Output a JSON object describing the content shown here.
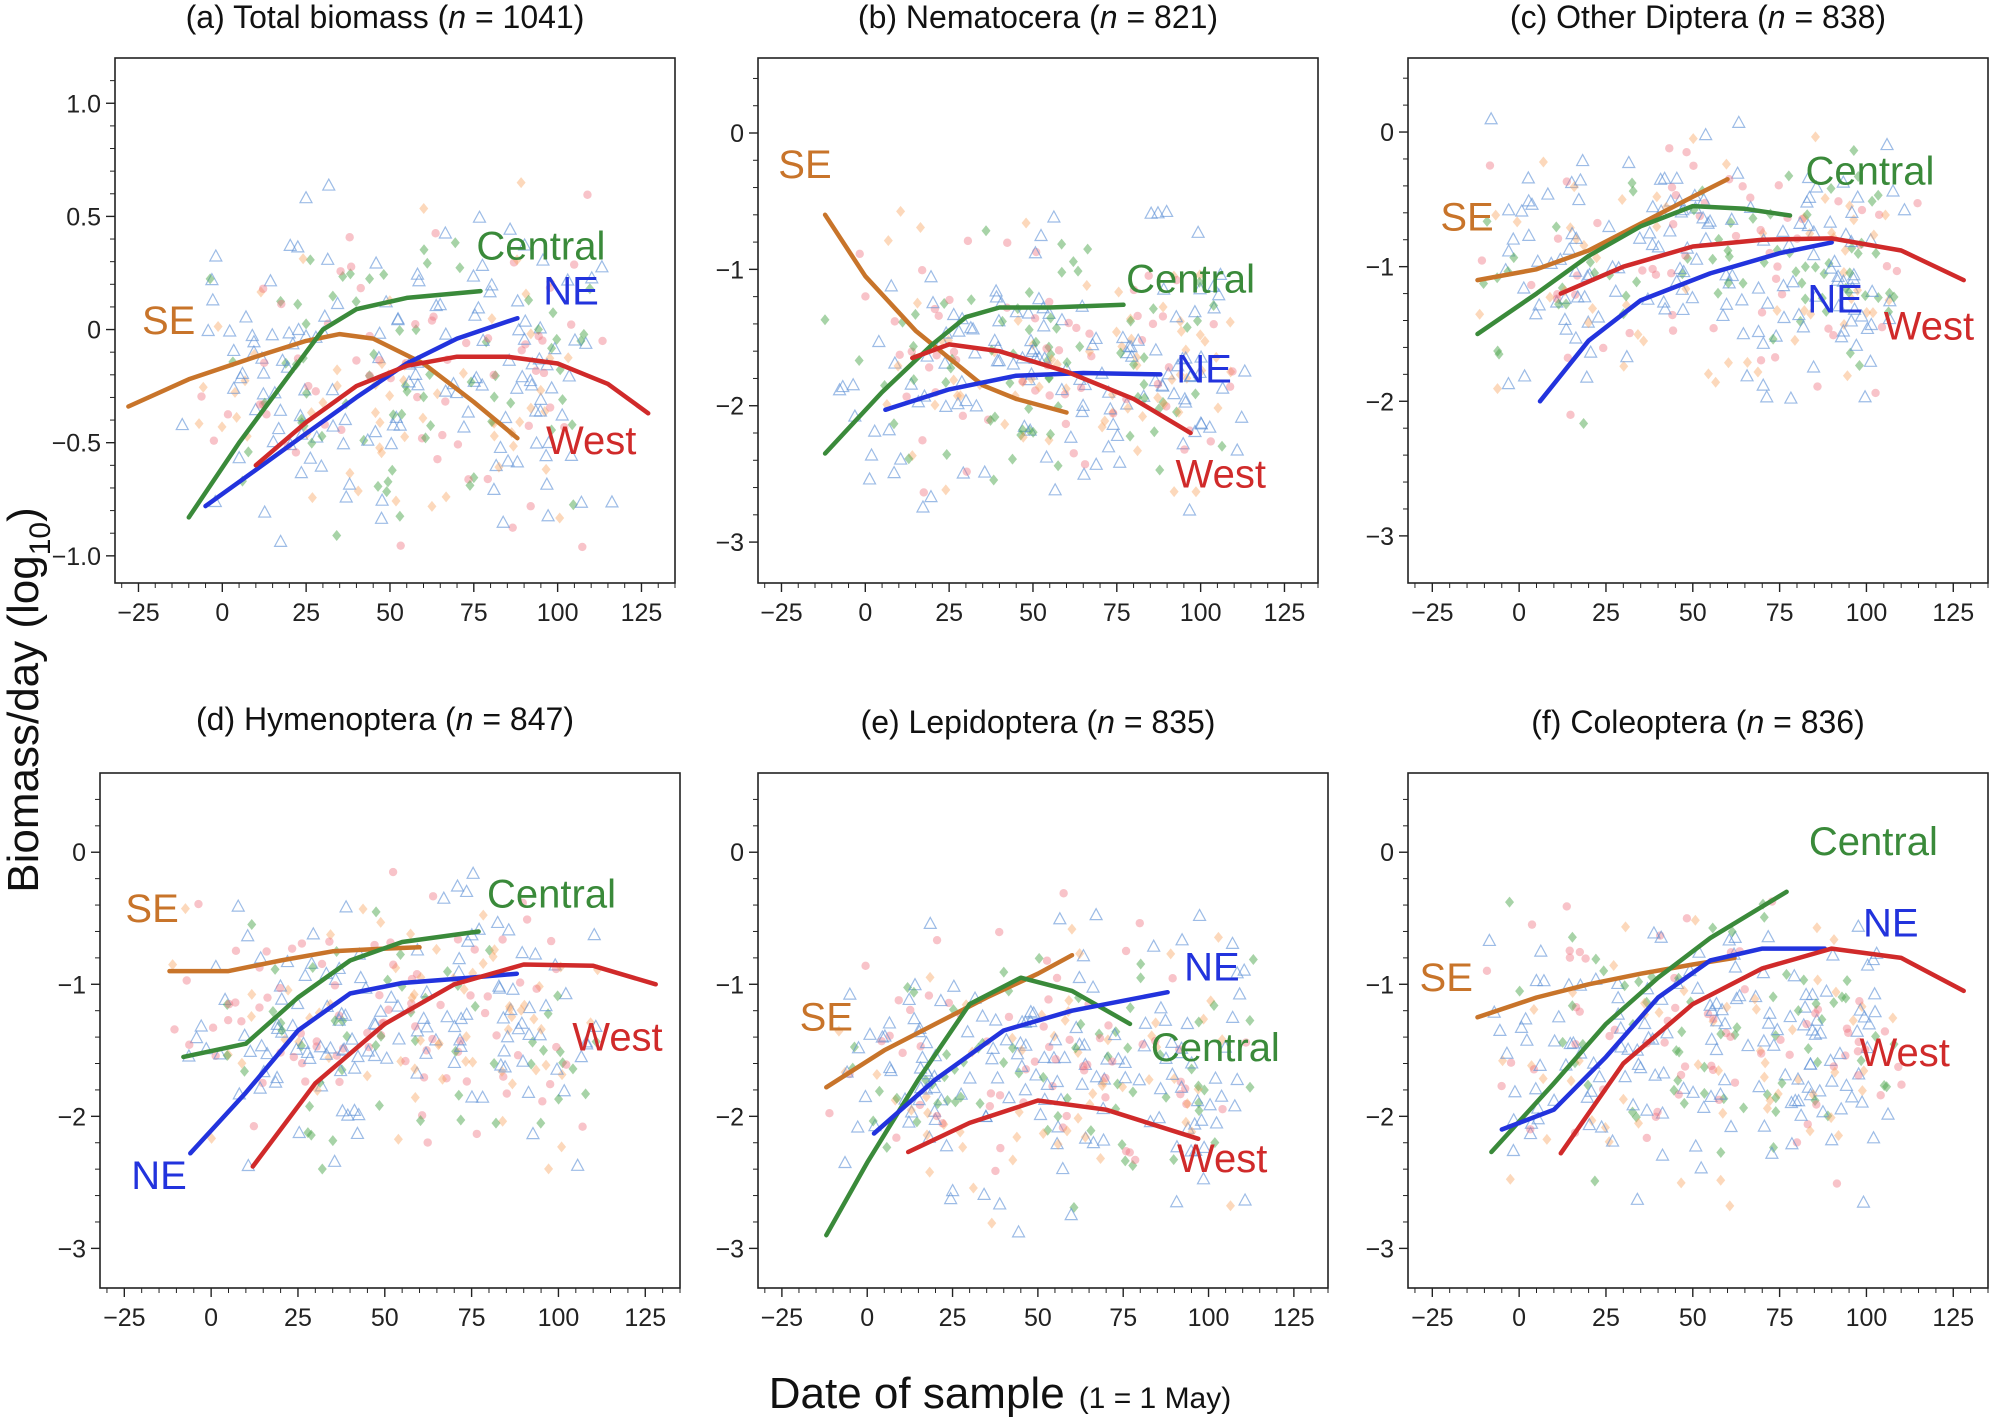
{
  "figure": {
    "y_axis_label": {
      "main": "Biomass/day (log",
      "sub": "10",
      "close": ")"
    },
    "x_axis_label": {
      "main": "Date of sample",
      "note": "(1 = 1 May)"
    }
  },
  "colors": {
    "SE": "#c8742a",
    "Central": "#3a8a3a",
    "NE": "#2233dd",
    "West": "#d02a2a"
  },
  "point_colors": {
    "SE": "#f7a35c",
    "Central": "#4fa84f",
    "NE": "#5b8fd6",
    "West": "#ef6f7f"
  },
  "chart_data": [
    {
      "type": "scatter",
      "panel_label": "(a) Total biomass (",
      "n_text": "n",
      "count_text": " = 1041)",
      "xlim": [
        -32,
        135
      ],
      "ylim": [
        -1.12,
        1.2
      ],
      "xticks": [
        -25,
        0,
        25,
        50,
        75,
        100,
        125
      ],
      "yticks": [
        1.0,
        0.5,
        0,
        -0.5,
        -1.0
      ],
      "ytick_labels": [
        "1.0",
        "0.5",
        "0",
        "−0.5",
        "−1.0"
      ],
      "scatter": {
        "ymin": -1.0,
        "ymax": 0.85,
        "center": -0.2,
        "spread": 0.45
      },
      "series": [
        {
          "name": "SE",
          "x": [
            -28,
            -10,
            10,
            25,
            35,
            45,
            60,
            75,
            88
          ],
          "y": [
            -0.34,
            -0.22,
            -0.12,
            -0.05,
            -0.02,
            -0.04,
            -0.15,
            -0.32,
            -0.48
          ]
        },
        {
          "name": "Central",
          "x": [
            -10,
            5,
            20,
            30,
            40,
            55,
            77
          ],
          "y": [
            -0.83,
            -0.5,
            -0.2,
            0.0,
            0.09,
            0.14,
            0.17
          ]
        },
        {
          "name": "NE",
          "x": [
            -5,
            10,
            25,
            40,
            55,
            70,
            88
          ],
          "y": [
            -0.78,
            -0.62,
            -0.46,
            -0.3,
            -0.15,
            -0.04,
            0.05
          ]
        },
        {
          "name": "West",
          "x": [
            10,
            25,
            40,
            55,
            70,
            85,
            100,
            115,
            127
          ],
          "y": [
            -0.6,
            -0.41,
            -0.25,
            -0.16,
            -0.12,
            -0.12,
            -0.15,
            -0.24,
            -0.37
          ]
        }
      ],
      "labels": [
        {
          "text": "SE",
          "x": -16,
          "y": -0.02
        },
        {
          "text": "Central",
          "x": 95,
          "y": 0.31
        },
        {
          "text": "NE",
          "x": 104,
          "y": 0.11
        },
        {
          "text": "West",
          "x": 110,
          "y": -0.55
        }
      ]
    },
    {
      "type": "scatter",
      "panel_label": "(b) Nematocera (",
      "n_text": "n",
      "count_text": " = 821)",
      "xlim": [
        -32,
        135
      ],
      "ylim": [
        -3.3,
        0.55
      ],
      "xticks": [
        -25,
        0,
        25,
        50,
        75,
        100,
        125
      ],
      "yticks": [
        0,
        -1,
        -2,
        -3
      ],
      "ytick_labels": [
        "0",
        "−1",
        "−2",
        "−3"
      ],
      "scatter": {
        "ymin": -3.0,
        "ymax": 0.38,
        "center": -1.7,
        "spread": 0.6
      },
      "series": [
        {
          "name": "SE",
          "x": [
            -12,
            0,
            15,
            25,
            35,
            45,
            60
          ],
          "y": [
            -0.6,
            -1.05,
            -1.45,
            -1.65,
            -1.85,
            -1.95,
            -2.05
          ]
        },
        {
          "name": "Central",
          "x": [
            -12,
            5,
            20,
            30,
            40,
            55,
            77
          ],
          "y": [
            -2.35,
            -1.9,
            -1.55,
            -1.35,
            -1.28,
            -1.28,
            -1.26
          ]
        },
        {
          "name": "NE",
          "x": [
            6,
            25,
            45,
            65,
            88
          ],
          "y": [
            -2.03,
            -1.88,
            -1.78,
            -1.76,
            -1.77
          ]
        },
        {
          "name": "West",
          "x": [
            14,
            25,
            40,
            60,
            80,
            97
          ],
          "y": [
            -1.65,
            -1.55,
            -1.6,
            -1.75,
            -1.95,
            -2.2
          ]
        }
      ],
      "labels": [
        {
          "text": "SE",
          "x": -18,
          "y": -0.33
        },
        {
          "text": "Central",
          "x": 97,
          "y": -1.17
        },
        {
          "text": "NE",
          "x": 101,
          "y": -1.83
        },
        {
          "text": "West",
          "x": 106,
          "y": -2.6
        }
      ]
    },
    {
      "type": "scatter",
      "panel_label": "(c) Other Diptera (",
      "n_text": "n",
      "count_text": " = 838)",
      "xlim": [
        -32,
        135
      ],
      "ylim": [
        -3.35,
        0.55
      ],
      "xticks": [
        -25,
        0,
        25,
        50,
        75,
        100,
        125
      ],
      "yticks": [
        0,
        -1,
        -2,
        -3
      ],
      "ytick_labels": [
        "0",
        "−1",
        "−2",
        "−3"
      ],
      "scatter": {
        "ymin": -3.0,
        "ymax": 0.45,
        "center": -1.0,
        "spread": 0.6
      },
      "series": [
        {
          "name": "SE",
          "x": [
            -12,
            5,
            20,
            35,
            50,
            60
          ],
          "y": [
            -1.1,
            -1.02,
            -0.88,
            -0.68,
            -0.48,
            -0.35
          ]
        },
        {
          "name": "Central",
          "x": [
            -12,
            5,
            20,
            35,
            50,
            65,
            78
          ],
          "y": [
            -1.5,
            -1.2,
            -0.92,
            -0.7,
            -0.55,
            -0.57,
            -0.62
          ]
        },
        {
          "name": "NE",
          "x": [
            6,
            20,
            35,
            55,
            75,
            90
          ],
          "y": [
            -2.0,
            -1.55,
            -1.25,
            -1.05,
            -0.9,
            -0.82
          ]
        },
        {
          "name": "West",
          "x": [
            12,
            30,
            50,
            70,
            90,
            110,
            128
          ],
          "y": [
            -1.2,
            -1.0,
            -0.85,
            -0.8,
            -0.79,
            -0.88,
            -1.1
          ]
        }
      ],
      "labels": [
        {
          "text": "SE",
          "x": -15,
          "y": -0.73
        },
        {
          "text": "Central",
          "x": 101,
          "y": -0.39
        },
        {
          "text": "NE",
          "x": 91,
          "y": -1.34
        },
        {
          "text": "West",
          "x": 118,
          "y": -1.54
        }
      ]
    },
    {
      "type": "scatter",
      "panel_label": "(d) Hymenoptera (",
      "n_text": "n",
      "count_text": " = 847)",
      "xlim": [
        -32,
        135
      ],
      "ylim": [
        -3.3,
        0.6
      ],
      "xticks": [
        -25,
        0,
        25,
        50,
        75,
        100,
        125
      ],
      "yticks": [
        0,
        -1,
        -2,
        -3
      ],
      "ytick_labels": [
        "0",
        "−1",
        "−2",
        "−3"
      ],
      "scatter": {
        "ymin": -3.0,
        "ymax": 0.22,
        "center": -1.3,
        "spread": 0.6
      },
      "series": [
        {
          "name": "SE",
          "x": [
            -12,
            5,
            20,
            35,
            50,
            60
          ],
          "y": [
            -0.9,
            -0.9,
            -0.82,
            -0.75,
            -0.73,
            -0.72
          ]
        },
        {
          "name": "Central",
          "x": [
            -8,
            10,
            25,
            40,
            55,
            77
          ],
          "y": [
            -1.55,
            -1.45,
            -1.1,
            -0.82,
            -0.68,
            -0.6
          ]
        },
        {
          "name": "NE",
          "x": [
            -6,
            10,
            25,
            40,
            55,
            70,
            88
          ],
          "y": [
            -2.28,
            -1.82,
            -1.35,
            -1.07,
            -0.99,
            -0.96,
            -0.92
          ]
        },
        {
          "name": "West",
          "x": [
            12,
            30,
            50,
            70,
            90,
            110,
            128
          ],
          "y": [
            -2.38,
            -1.75,
            -1.3,
            -1.0,
            -0.85,
            -0.86,
            -1.0
          ]
        }
      ],
      "labels": [
        {
          "text": "SE",
          "x": -17,
          "y": -0.53
        },
        {
          "text": "Central",
          "x": 98,
          "y": -0.42
        },
        {
          "text": "NE",
          "x": -15,
          "y": -2.55
        },
        {
          "text": "West",
          "x": 117,
          "y": -1.5
        }
      ]
    },
    {
      "type": "scatter",
      "panel_label": "(e) Lepidoptera (",
      "n_text": "n",
      "count_text": " = 835)",
      "xlim": [
        -32,
        135
      ],
      "ylim": [
        -3.3,
        0.6
      ],
      "xticks": [
        -25,
        0,
        25,
        50,
        75,
        100,
        125
      ],
      "yticks": [
        0,
        -1,
        -2,
        -3
      ],
      "ytick_labels": [
        "0",
        "−1",
        "−2",
        "−3"
      ],
      "scatter": {
        "ymin": -3.0,
        "ymax": 0.55,
        "center": -1.6,
        "spread": 0.65
      },
      "series": [
        {
          "name": "SE",
          "x": [
            -12,
            5,
            20,
            35,
            50,
            60
          ],
          "y": [
            -1.78,
            -1.5,
            -1.3,
            -1.1,
            -0.92,
            -0.78
          ]
        },
        {
          "name": "Central",
          "x": [
            -12,
            0,
            15,
            30,
            45,
            60,
            77
          ],
          "y": [
            -2.9,
            -2.35,
            -1.72,
            -1.15,
            -0.95,
            -1.05,
            -1.3
          ]
        },
        {
          "name": "NE",
          "x": [
            2,
            20,
            40,
            60,
            88
          ],
          "y": [
            -2.13,
            -1.72,
            -1.35,
            -1.2,
            -1.06
          ]
        },
        {
          "name": "West",
          "x": [
            12,
            30,
            50,
            70,
            97
          ],
          "y": [
            -2.27,
            -2.05,
            -1.88,
            -1.95,
            -2.17
          ]
        }
      ],
      "labels": [
        {
          "text": "SE",
          "x": -12,
          "y": -1.35
        },
        {
          "text": "NE",
          "x": 101,
          "y": -0.97
        },
        {
          "text": "Central",
          "x": 102,
          "y": -1.58
        },
        {
          "text": "West",
          "x": 104,
          "y": -2.42
        }
      ]
    },
    {
      "type": "scatter",
      "panel_label": "(f) Coleoptera (",
      "n_text": "n",
      "count_text": " = 836)",
      "xlim": [
        -32,
        135
      ],
      "ylim": [
        -3.3,
        0.6
      ],
      "xticks": [
        -25,
        0,
        25,
        50,
        75,
        100,
        125
      ],
      "yticks": [
        0,
        -1,
        -2,
        -3
      ],
      "ytick_labels": [
        "0",
        "−1",
        "−2",
        "−3"
      ],
      "scatter": {
        "ymin": -3.0,
        "ymax": 0.55,
        "center": -1.5,
        "spread": 0.65
      },
      "series": [
        {
          "name": "SE",
          "x": [
            -12,
            5,
            20,
            35,
            50,
            62
          ],
          "y": [
            -1.25,
            -1.1,
            -1.0,
            -0.92,
            -0.85,
            -0.8
          ]
        },
        {
          "name": "Central",
          "x": [
            -8,
            10,
            25,
            40,
            55,
            77
          ],
          "y": [
            -2.27,
            -1.75,
            -1.3,
            -0.95,
            -0.65,
            -0.3
          ]
        },
        {
          "name": "NE",
          "x": [
            -5,
            10,
            25,
            40,
            55,
            70,
            88
          ],
          "y": [
            -2.1,
            -1.95,
            -1.55,
            -1.1,
            -0.82,
            -0.73,
            -0.73
          ]
        },
        {
          "name": "West",
          "x": [
            12,
            30,
            50,
            70,
            90,
            110,
            128
          ],
          "y": [
            -2.28,
            -1.6,
            -1.15,
            -0.88,
            -0.73,
            -0.8,
            -1.05
          ]
        }
      ],
      "labels": [
        {
          "text": "Central",
          "x": 102,
          "y": -0.02
        },
        {
          "text": "NE",
          "x": 107,
          "y": -0.64
        },
        {
          "text": "SE",
          "x": -21,
          "y": -1.05
        },
        {
          "text": "West",
          "x": 111,
          "y": -1.62
        }
      ]
    }
  ]
}
